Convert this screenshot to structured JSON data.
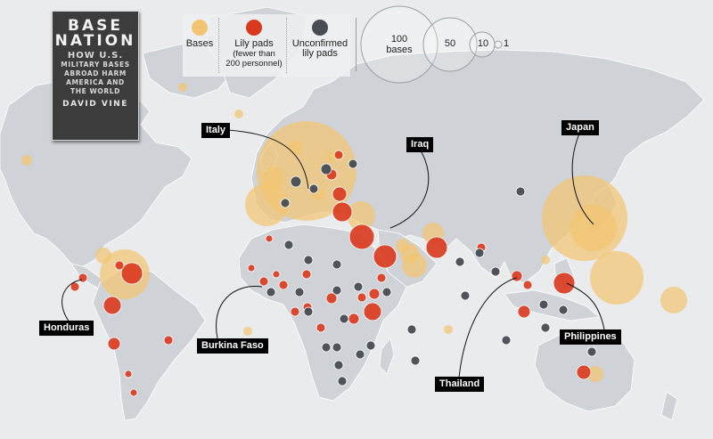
{
  "book": {
    "title_line1": "BASE",
    "title_line2": "NATION",
    "subtitle_line1": "HOW U.S.",
    "subtitle_line2": "MILITARY BASES",
    "subtitle_line3": "ABROAD HARM",
    "subtitle_line4": "AMERICA AND",
    "subtitle_line5": "THE WORLD",
    "author": "DAVID VINE"
  },
  "legend": {
    "bases_label": "Bases",
    "lily_label": "Lily pads",
    "lily_note_line1": "(fewer than",
    "lily_note_line2": "200 personnel)",
    "unconfirmed_line1": "Unconfirmed",
    "unconfirmed_line2": "lily pads",
    "colors": {
      "bases": "#f2c572",
      "lily_pads": "#d9391d",
      "unconfirmed": "#474d53"
    },
    "size_scale": [
      {
        "value": 100,
        "label_line1": "100",
        "label_line2": "bases"
      },
      {
        "value": 50,
        "label_line1": "50",
        "label_line2": ""
      },
      {
        "value": 10,
        "label_line1": "10",
        "label_line2": ""
      },
      {
        "value": 1,
        "label_line1": "1",
        "label_line2": ""
      }
    ]
  },
  "callouts": {
    "italy": "Italy",
    "iraq": "Iraq",
    "japan": "Japan",
    "honduras": "Honduras",
    "burkina_faso": "Burkina Faso",
    "thailand": "Thailand",
    "philippines": "Philippines"
  }
}
